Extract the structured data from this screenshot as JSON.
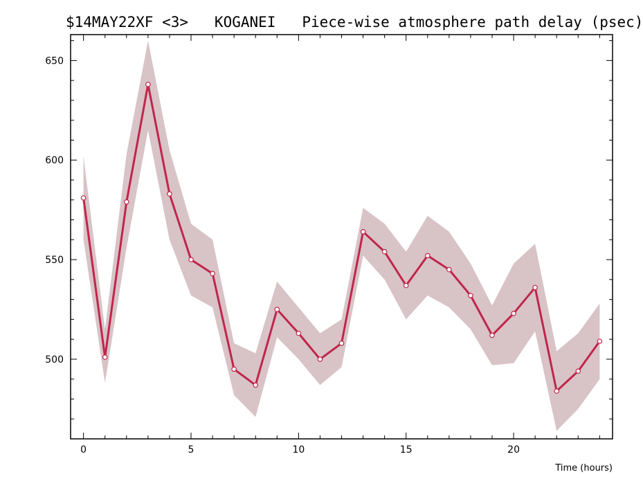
{
  "chart_data": {
    "type": "line",
    "title": "$14MAY22XF <3>   KOGANEI   Piece-wise atmosphere path delay (psec)",
    "xlabel": "Time (hours)",
    "ylabel": "",
    "xlim": [
      -0.6,
      24.6
    ],
    "ylim": [
      460,
      663
    ],
    "xticks": [
      0,
      5,
      10,
      15,
      20
    ],
    "yticks": [
      500,
      550,
      600,
      650
    ],
    "x_minor_step": 1,
    "y_minor_step": 10,
    "grid": false,
    "x": [
      0,
      1,
      2,
      3,
      4,
      5,
      6,
      7,
      8,
      9,
      10,
      11,
      12,
      13,
      14,
      15,
      16,
      17,
      18,
      19,
      20,
      21,
      22,
      23,
      24
    ],
    "series": [
      {
        "values": [
          581,
          501,
          579,
          638,
          583,
          550,
          543,
          495,
          487,
          525,
          513,
          500,
          508,
          564,
          554,
          537,
          552,
          545,
          532,
          512,
          523,
          536,
          484,
          494,
          509
        ],
        "band_upper": [
          602,
          515,
          603,
          660,
          605,
          568,
          560,
          508,
          503,
          539,
          526,
          513,
          520,
          576,
          568,
          554,
          572,
          564,
          548,
          527,
          548,
          558,
          504,
          513,
          528
        ],
        "band_lower": [
          560,
          488,
          556,
          615,
          560,
          532,
          526,
          482,
          471,
          511,
          500,
          487,
          496,
          552,
          540,
          520,
          532,
          526,
          515,
          497,
          498,
          514,
          464,
          475,
          490
        ]
      }
    ],
    "colors": {
      "line": "#c0254a",
      "band": "#d8c3c7",
      "marker_fill": "#ffffff",
      "axis": "#000000"
    }
  }
}
